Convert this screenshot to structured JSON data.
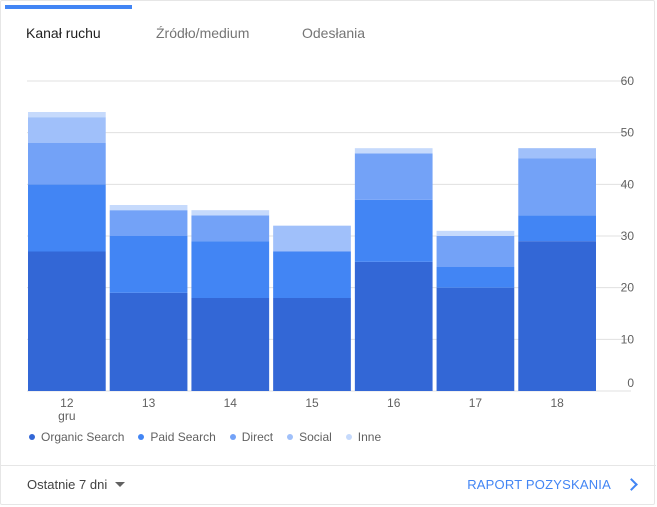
{
  "tabs": [
    {
      "label": "Kanał ruchu",
      "active": true
    },
    {
      "label": "Źródło/medium",
      "active": false
    },
    {
      "label": "Odesłania",
      "active": false
    }
  ],
  "chart_data": {
    "type": "bar",
    "stacked": true,
    "categories": [
      "12\ngru",
      "13",
      "14",
      "15",
      "16",
      "17",
      "18"
    ],
    "series": [
      {
        "name": "Organic Search",
        "color": "#3367d6",
        "values": [
          27,
          19,
          18,
          18,
          25,
          20,
          29
        ]
      },
      {
        "name": "Paid Search",
        "color": "#4285f4",
        "values": [
          13,
          11,
          11,
          9,
          12,
          4,
          5
        ]
      },
      {
        "name": "Direct",
        "color": "#73a2f7",
        "values": [
          8,
          5,
          5,
          0,
          9,
          6,
          11
        ]
      },
      {
        "name": "Social",
        "color": "#a0c0fa",
        "values": [
          5,
          0,
          0,
          5,
          0,
          0,
          2
        ]
      },
      {
        "name": "Inne",
        "color": "#c6dafc",
        "values": [
          1,
          1,
          1,
          0,
          1,
          1,
          0
        ]
      }
    ],
    "ylim": [
      0,
      60
    ],
    "yticks": [
      0,
      10,
      20,
      30,
      40,
      50,
      60
    ],
    "grid": true,
    "legend": "bottom"
  },
  "footer": {
    "range_label": "Ostatnie 7 dni",
    "report_label": "RAPORT POZYSKANIA"
  }
}
